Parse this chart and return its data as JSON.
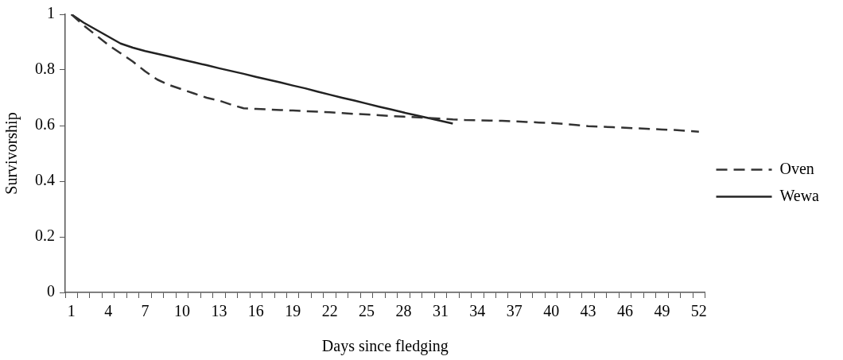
{
  "chart_data": {
    "type": "line",
    "xlabel": "Days since fledging",
    "ylabel": "Survivorship",
    "categories": [
      "1",
      null,
      null,
      "4",
      null,
      null,
      "7",
      null,
      null,
      "10",
      null,
      null,
      "13",
      null,
      null,
      "16",
      null,
      null,
      "19",
      null,
      null,
      "22",
      null,
      null,
      "25",
      null,
      null,
      "28",
      null,
      null,
      "31",
      null,
      null,
      "34",
      null,
      null,
      "37",
      null,
      null,
      "40",
      null,
      null,
      "43",
      null,
      null,
      "46",
      null,
      null,
      "49",
      null,
      null,
      "52"
    ],
    "series": [
      {
        "name": "Oven",
        "color": "#333333",
        "line_style": "dashed",
        "values": [
          1.0,
          0.96,
          0.925,
          0.89,
          0.86,
          0.83,
          0.795,
          0.765,
          0.745,
          0.73,
          0.715,
          0.7,
          0.69,
          0.675,
          0.662,
          0.66,
          0.658,
          0.656,
          0.654,
          0.652,
          0.65,
          0.648,
          0.645,
          0.642,
          0.64,
          0.637,
          0.634,
          0.632,
          0.63,
          0.627,
          0.625,
          0.622,
          0.62,
          0.619,
          0.618,
          0.617,
          0.615,
          0.613,
          0.611,
          0.609,
          0.606,
          0.602,
          0.598,
          0.596,
          0.594,
          0.592,
          0.59,
          0.588,
          0.586,
          0.584,
          0.581,
          0.578
        ]
      },
      {
        "name": "Wewa",
        "color": "#222222",
        "line_style": "solid",
        "values": [
          1.0,
          0.97,
          0.945,
          0.92,
          0.895,
          0.88,
          0.868,
          0.858,
          0.848,
          0.837,
          0.827,
          0.817,
          0.806,
          0.796,
          0.786,
          0.775,
          0.765,
          0.755,
          0.744,
          0.734,
          0.722,
          0.711,
          0.7,
          0.69,
          0.679,
          0.668,
          0.658,
          0.647,
          0.637,
          0.627,
          0.617,
          0.607,
          null,
          null,
          null,
          null,
          null,
          null,
          null,
          null,
          null,
          null,
          null,
          null,
          null,
          null,
          null,
          null,
          null,
          null,
          null,
          null
        ]
      }
    ],
    "ylim": [
      0,
      1
    ],
    "yticks": [
      0,
      0.2,
      0.4,
      0.6,
      0.8,
      1
    ],
    "grid": false,
    "legend": "right",
    "marker": "none"
  }
}
